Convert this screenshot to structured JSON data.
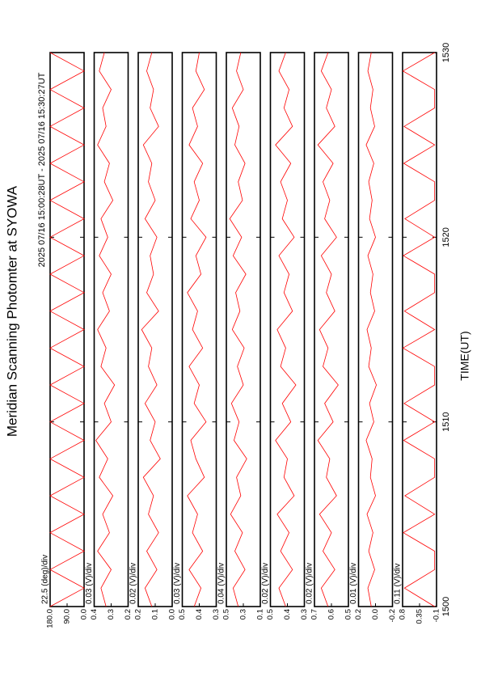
{
  "title": "Meridian Scanning Photomter at SYOWA",
  "subtitle": "2025 07/16 15:00:28UT - 2025 07/16 15:30:27UT",
  "xlabel": "TIME(UT)",
  "chart_data": [
    {
      "type": "line",
      "label": "22.5 (deg)/div",
      "xlim": [
        1500,
        1530
      ],
      "ylim": [
        0,
        180
      ],
      "yticks": [
        {
          "value": 180,
          "label": "180.0"
        },
        {
          "value": 90,
          "label": "90.0"
        },
        {
          "value": 0,
          "label": "0.0"
        }
      ],
      "x": [
        1500,
        1501,
        1502,
        1503,
        1504,
        1505,
        1506,
        1507,
        1508,
        1509,
        1510,
        1511,
        1512,
        1513,
        1514,
        1515,
        1516,
        1517,
        1518,
        1519,
        1520,
        1521,
        1522,
        1523,
        1524,
        1525,
        1526,
        1527,
        1528,
        1529,
        1530
      ],
      "series": [
        {
          "color": "#ff0000",
          "values": [
            180,
            0,
            180,
            0,
            180,
            0,
            180,
            0,
            180,
            0,
            180,
            0,
            180,
            0,
            180,
            0,
            180,
            0,
            180,
            0,
            180,
            0,
            180,
            0,
            180,
            0,
            180,
            0,
            180,
            0,
            180
          ]
        }
      ]
    },
    {
      "type": "line",
      "label": "0.03 (V)/div",
      "xlim": [
        1500,
        1530
      ],
      "ylim": [
        0.2,
        0.4
      ],
      "yticks": [
        0.4,
        0.3,
        0.2
      ],
      "x": [
        1500,
        1501,
        1502,
        1503,
        1504,
        1505,
        1506,
        1507,
        1508,
        1509,
        1510,
        1511,
        1512,
        1513,
        1514,
        1515,
        1516,
        1517,
        1518,
        1519,
        1520,
        1521,
        1522,
        1523,
        1524,
        1525,
        1526,
        1527,
        1528,
        1529,
        1530
      ],
      "series": [
        {
          "color": "#ff0000",
          "values": [
            0.33,
            0.36,
            0.3,
            0.38,
            0.31,
            0.35,
            0.29,
            0.37,
            0.32,
            0.39,
            0.3,
            0.34,
            0.28,
            0.36,
            0.33,
            0.38,
            0.31,
            0.35,
            0.3,
            0.37,
            0.32,
            0.36,
            0.29,
            0.34,
            0.31,
            0.38,
            0.33,
            0.35,
            0.3,
            0.37,
            0.34
          ]
        }
      ]
    },
    {
      "type": "line",
      "label": "0.02 (V)/div",
      "xlim": [
        1500,
        1530
      ],
      "ylim": [
        0,
        0.2
      ],
      "yticks": [
        0.2,
        0.1,
        {
          "value": 0,
          "label": "0.0"
        }
      ],
      "x": [
        1500,
        1501,
        1502,
        1503,
        1504,
        1505,
        1506,
        1507,
        1508,
        1509,
        1510,
        1511,
        1512,
        1513,
        1514,
        1515,
        1516,
        1517,
        1518,
        1519,
        1520,
        1521,
        1522,
        1523,
        1524,
        1525,
        1526,
        1527,
        1528,
        1529,
        1530
      ],
      "series": [
        {
          "color": "#ff0000",
          "values": [
            0.12,
            0.16,
            0.09,
            0.15,
            0.08,
            0.14,
            0.11,
            0.17,
            0.07,
            0.13,
            0.1,
            0.16,
            0.09,
            0.14,
            0.12,
            0.18,
            0.08,
            0.15,
            0.11,
            0.13,
            0.09,
            0.16,
            0.1,
            0.14,
            0.12,
            0.17,
            0.08,
            0.13,
            0.11,
            0.15,
            0.12
          ]
        }
      ]
    },
    {
      "type": "line",
      "label": "0.03 (V)/div",
      "xlim": [
        1500,
        1530
      ],
      "ylim": [
        0.3,
        0.5
      ],
      "yticks": [
        0.5,
        0.4,
        0.3
      ],
      "x": [
        1500,
        1501,
        1502,
        1503,
        1504,
        1505,
        1506,
        1507,
        1508,
        1509,
        1510,
        1511,
        1512,
        1513,
        1514,
        1515,
        1516,
        1517,
        1518,
        1519,
        1520,
        1521,
        1522,
        1523,
        1524,
        1525,
        1526,
        1527,
        1528,
        1529,
        1530
      ],
      "series": [
        {
          "color": "#ff0000",
          "values": [
            0.43,
            0.39,
            0.46,
            0.38,
            0.44,
            0.41,
            0.47,
            0.37,
            0.42,
            0.45,
            0.36,
            0.43,
            0.4,
            0.46,
            0.38,
            0.44,
            0.41,
            0.47,
            0.39,
            0.42,
            0.36,
            0.45,
            0.4,
            0.43,
            0.38,
            0.46,
            0.41,
            0.44,
            0.37,
            0.42,
            0.4
          ]
        }
      ]
    },
    {
      "type": "line",
      "label": "0.04 (V)/div",
      "xlim": [
        1500,
        1530
      ],
      "ylim": [
        0.1,
        0.5
      ],
      "yticks": [
        0.5,
        0.3,
        0.1
      ],
      "x": [
        1500,
        1501,
        1502,
        1503,
        1504,
        1505,
        1506,
        1507,
        1508,
        1509,
        1510,
        1511,
        1512,
        1513,
        1514,
        1515,
        1516,
        1517,
        1518,
        1519,
        1520,
        1521,
        1522,
        1523,
        1524,
        1525,
        1526,
        1527,
        1528,
        1529,
        1530
      ],
      "series": [
        {
          "color": "#ff0000",
          "values": [
            0.36,
            0.42,
            0.28,
            0.4,
            0.31,
            0.45,
            0.33,
            0.38,
            0.26,
            0.41,
            0.35,
            0.44,
            0.3,
            0.37,
            0.29,
            0.43,
            0.34,
            0.39,
            0.27,
            0.42,
            0.32,
            0.46,
            0.31,
            0.36,
            0.28,
            0.4,
            0.35,
            0.43,
            0.3,
            0.38,
            0.33
          ]
        }
      ]
    },
    {
      "type": "line",
      "label": "0.02 (V)/div",
      "xlim": [
        1500,
        1530
      ],
      "ylim": [
        0.3,
        0.5
      ],
      "yticks": [
        0.5,
        0.4,
        0.3
      ],
      "x": [
        1500,
        1501,
        1502,
        1503,
        1504,
        1505,
        1506,
        1507,
        1508,
        1509,
        1510,
        1511,
        1512,
        1513,
        1514,
        1515,
        1516,
        1517,
        1518,
        1519,
        1520,
        1521,
        1522,
        1523,
        1524,
        1525,
        1526,
        1527,
        1528,
        1529,
        1530
      ],
      "series": [
        {
          "color": "#ff0000",
          "values": [
            0.41,
            0.45,
            0.37,
            0.44,
            0.39,
            0.46,
            0.36,
            0.42,
            0.4,
            0.47,
            0.38,
            0.43,
            0.35,
            0.44,
            0.41,
            0.46,
            0.37,
            0.42,
            0.39,
            0.45,
            0.36,
            0.43,
            0.4,
            0.44,
            0.38,
            0.47,
            0.37,
            0.42,
            0.39,
            0.45,
            0.41
          ]
        }
      ]
    },
    {
      "type": "line",
      "label": "0.02 (V)/div",
      "xlim": [
        1500,
        1530
      ],
      "ylim": [
        0.5,
        0.7
      ],
      "yticks": [
        0.7,
        0.6,
        0.5
      ],
      "x": [
        1500,
        1501,
        1502,
        1503,
        1504,
        1505,
        1506,
        1507,
        1508,
        1509,
        1510,
        1511,
        1512,
        1513,
        1514,
        1515,
        1516,
        1517,
        1518,
        1519,
        1520,
        1521,
        1522,
        1523,
        1524,
        1525,
        1526,
        1527,
        1528,
        1529,
        1530
      ],
      "series": [
        {
          "color": "#ff0000",
          "values": [
            0.62,
            0.66,
            0.58,
            0.65,
            0.6,
            0.67,
            0.57,
            0.63,
            0.61,
            0.68,
            0.59,
            0.64,
            0.56,
            0.65,
            0.62,
            0.67,
            0.58,
            0.63,
            0.6,
            0.66,
            0.57,
            0.64,
            0.61,
            0.65,
            0.59,
            0.68,
            0.58,
            0.63,
            0.6,
            0.66,
            0.62
          ]
        }
      ]
    },
    {
      "type": "line",
      "label": "0.01 (V)/div",
      "xlim": [
        1500,
        1530
      ],
      "ylim": [
        -0.2,
        0.2
      ],
      "yticks": [
        0.2,
        {
          "value": 0,
          "label": "0.0"
        },
        -0.2
      ],
      "x": [
        1500,
        1501,
        1502,
        1503,
        1504,
        1505,
        1506,
        1507,
        1508,
        1509,
        1510,
        1511,
        1512,
        1513,
        1514,
        1515,
        1516,
        1517,
        1518,
        1519,
        1520,
        1521,
        1522,
        1523,
        1524,
        1525,
        1526,
        1527,
        1528,
        1529,
        1530
      ],
      "series": [
        {
          "color": "#ff0000",
          "values": [
            0.05,
            0.09,
            0.01,
            0.08,
            0.03,
            0.1,
            0.0,
            0.06,
            0.04,
            0.11,
            0.02,
            0.07,
            -0.01,
            0.08,
            0.05,
            0.1,
            0.01,
            0.06,
            0.03,
            0.09,
            0.0,
            0.07,
            0.04,
            0.08,
            0.02,
            0.11,
            0.01,
            0.06,
            0.03,
            0.09,
            0.05
          ]
        }
      ]
    },
    {
      "type": "line",
      "label": "0.11 (V)/div",
      "xlim": [
        1500,
        1530
      ],
      "ylim": [
        -0.1,
        0.8
      ],
      "yticks": [
        0.8,
        0.35,
        -0.1
      ],
      "xticks": [
        1500,
        1510,
        1520,
        1530
      ],
      "x": [
        1500,
        1501,
        1502,
        1503,
        1504,
        1505,
        1506,
        1507,
        1508,
        1509,
        1510,
        1511,
        1512,
        1513,
        1514,
        1515,
        1516,
        1517,
        1518,
        1519,
        1520,
        1521,
        1522,
        1523,
        1524,
        1525,
        1526,
        1527,
        1528,
        1529,
        1530
      ],
      "series": [
        {
          "color": "#ff0000",
          "values": [
            -0.05,
            0.75,
            -0.05,
            -0.05,
            0.78,
            -0.05,
            0.74,
            -0.05,
            -0.05,
            0.77,
            -0.05,
            0.76,
            -0.05,
            -0.05,
            0.79,
            -0.05,
            0.75,
            -0.05,
            -0.05,
            0.78,
            -0.05,
            0.74,
            -0.05,
            -0.05,
            0.77,
            -0.05,
            0.76,
            -0.05,
            -0.05,
            0.79,
            -0.05
          ]
        }
      ]
    }
  ]
}
